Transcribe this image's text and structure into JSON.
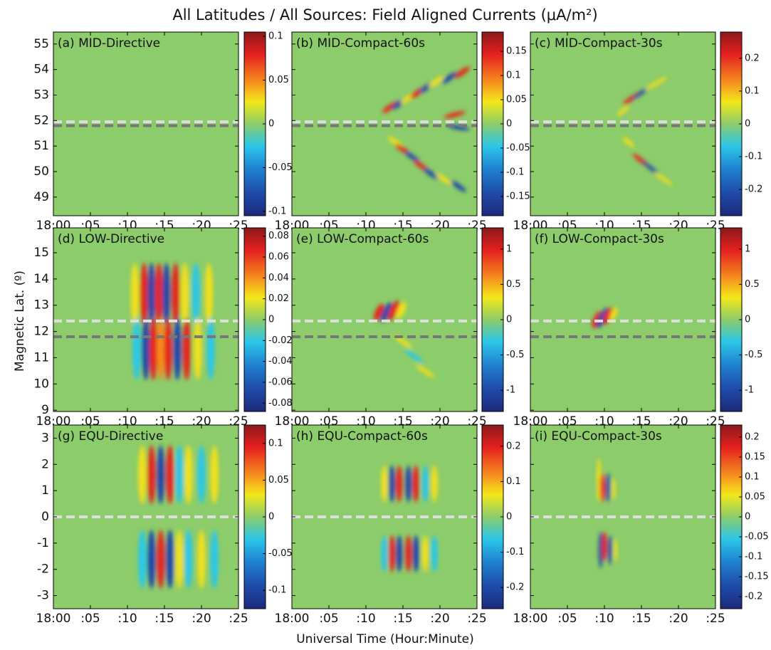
{
  "title": "All Latitudes / All Sources: Field Aligned Currents (μA/m²)",
  "x_label": "Universal Time (Hour:Minute)",
  "y_label": "Magnetic Lat. (º)",
  "chart_data": [
    {
      "type": "heatmap",
      "title": "(a) MID-Directive",
      "colormap": "jet",
      "xlim": [
        0,
        25
      ],
      "xticks": [
        {
          "value": 0,
          "label": "18:00"
        },
        {
          "value": 5,
          "label": ":05"
        },
        {
          "value": 10,
          "label": ":10"
        },
        {
          "value": 15,
          "label": ":15"
        },
        {
          "value": 20,
          "label": ":20"
        },
        {
          "value": 25,
          "label": ":25"
        }
      ],
      "ylim": [
        48.27,
        55.47
      ],
      "yticks": [
        49,
        50,
        51,
        52,
        53,
        54,
        55
      ],
      "colorbar": {
        "lim": [
          -0.105,
          0.105
        ],
        "ticks": [
          -0.1,
          -0.05,
          0,
          0.05,
          0.1
        ]
      },
      "reference_lines": [
        {
          "value": 51.95,
          "color": "#dedede"
        },
        {
          "value": 51.8,
          "color": "#777777"
        }
      ]
    },
    {
      "type": "heatmap",
      "title": "(b) MID-Compact-60s",
      "colormap": "jet",
      "xlim": [
        0,
        25
      ],
      "xticks": [
        {
          "value": 0,
          "label": "18:00"
        },
        {
          "value": 5,
          "label": ":05"
        },
        {
          "value": 10,
          "label": ":10"
        },
        {
          "value": 15,
          "label": ":15"
        },
        {
          "value": 20,
          "label": ":20"
        },
        {
          "value": 25,
          "label": ":25"
        }
      ],
      "ylim": [
        48.27,
        55.47
      ],
      "yticks": [
        49,
        50,
        51,
        52,
        53,
        54,
        55
      ],
      "colorbar": {
        "lim": [
          -0.19,
          0.19
        ],
        "ticks": [
          -0.15,
          -0.1,
          -0.05,
          0,
          0.05,
          0.1,
          0.15
        ]
      },
      "reference_lines": [
        {
          "value": 51.95,
          "color": "#dedede"
        },
        {
          "value": 51.8,
          "color": "#777777"
        }
      ]
    },
    {
      "type": "heatmap",
      "title": "(c) MID-Compact-30s",
      "colormap": "jet",
      "xlim": [
        0,
        25
      ],
      "xticks": [
        {
          "value": 0,
          "label": "18:00"
        },
        {
          "value": 5,
          "label": ":05"
        },
        {
          "value": 10,
          "label": ":10"
        },
        {
          "value": 15,
          "label": ":15"
        },
        {
          "value": 20,
          "label": ":20"
        },
        {
          "value": 25,
          "label": ":25"
        }
      ],
      "ylim": [
        48.27,
        55.47
      ],
      "yticks": [
        49,
        50,
        51,
        52,
        53,
        54,
        55
      ],
      "colorbar": {
        "lim": [
          -0.28,
          0.28
        ],
        "ticks": [
          -0.2,
          -0.1,
          0,
          0.1,
          0.2
        ]
      },
      "reference_lines": [
        {
          "value": 51.95,
          "color": "#dedede"
        },
        {
          "value": 51.8,
          "color": "#777777"
        }
      ]
    },
    {
      "type": "heatmap",
      "title": "(d) LOW-Directive",
      "colormap": "jet",
      "xlim": [
        0,
        25
      ],
      "xticks": [
        {
          "value": 0,
          "label": "18:00"
        },
        {
          "value": 5,
          "label": ":05"
        },
        {
          "value": 10,
          "label": ":10"
        },
        {
          "value": 15,
          "label": ":15"
        },
        {
          "value": 20,
          "label": ":20"
        },
        {
          "value": 25,
          "label": ":25"
        }
      ],
      "ylim": [
        8.95,
        15.95
      ],
      "yticks": [
        9,
        10,
        11,
        12,
        13,
        14,
        15
      ],
      "colorbar": {
        "lim": [
          -0.088,
          0.088
        ],
        "ticks": [
          -0.08,
          -0.06,
          -0.04,
          -0.02,
          0,
          0.02,
          0.04,
          0.06,
          0.08
        ]
      },
      "reference_lines": [
        {
          "value": 12.4,
          "color": "#dedede"
        },
        {
          "value": 11.8,
          "color": "#777777"
        }
      ]
    },
    {
      "type": "heatmap",
      "title": "(e) LOW-Compact-60s",
      "colormap": "jet",
      "xlim": [
        0,
        25
      ],
      "xticks": [
        {
          "value": 0,
          "label": "18:00"
        },
        {
          "value": 5,
          "label": ":05"
        },
        {
          "value": 10,
          "label": ":10"
        },
        {
          "value": 15,
          "label": ":15"
        },
        {
          "value": 20,
          "label": ":20"
        },
        {
          "value": 25,
          "label": ":25"
        }
      ],
      "ylim": [
        8.95,
        15.95
      ],
      "yticks": [
        9,
        10,
        11,
        12,
        13,
        14,
        15
      ],
      "colorbar": {
        "lim": [
          -1.3,
          1.3
        ],
        "ticks": [
          -1,
          -0.5,
          0,
          0.5,
          1
        ]
      },
      "reference_lines": [
        {
          "value": 12.4,
          "color": "#dedede"
        },
        {
          "value": 11.8,
          "color": "#777777"
        }
      ]
    },
    {
      "type": "heatmap",
      "title": "(f) LOW-Compact-30s",
      "colormap": "jet",
      "xlim": [
        0,
        25
      ],
      "xticks": [
        {
          "value": 0,
          "label": "18:00"
        },
        {
          "value": 5,
          "label": ":05"
        },
        {
          "value": 10,
          "label": ":10"
        },
        {
          "value": 15,
          "label": ":15"
        },
        {
          "value": 20,
          "label": ":20"
        },
        {
          "value": 25,
          "label": ":25"
        }
      ],
      "ylim": [
        8.95,
        15.95
      ],
      "yticks": [
        9,
        10,
        11,
        12,
        13,
        14,
        15
      ],
      "colorbar": {
        "lim": [
          -1.3,
          1.3
        ],
        "ticks": [
          -1,
          -0.5,
          0,
          0.5,
          1
        ]
      },
      "reference_lines": [
        {
          "value": 12.4,
          "color": "#dedede"
        },
        {
          "value": 11.8,
          "color": "#777777"
        }
      ]
    },
    {
      "type": "heatmap",
      "title": "(g) EQU-Directive",
      "colormap": "jet",
      "xlim": [
        0,
        25
      ],
      "xticks": [
        {
          "value": 0,
          "label": "18:00"
        },
        {
          "value": 5,
          "label": ":05"
        },
        {
          "value": 10,
          "label": ":10"
        },
        {
          "value": 15,
          "label": ":15"
        },
        {
          "value": 20,
          "label": ":20"
        },
        {
          "value": 25,
          "label": ":25"
        }
      ],
      "ylim": [
        -3.5,
        3.5
      ],
      "yticks": [
        -3,
        -2,
        -1,
        0,
        1,
        2,
        3
      ],
      "colorbar": {
        "lim": [
          -0.125,
          0.125
        ],
        "ticks": [
          -0.1,
          -0.05,
          0,
          0.05,
          0.1
        ]
      },
      "reference_lines": [
        {
          "value": 0,
          "color": "#dedede"
        }
      ]
    },
    {
      "type": "heatmap",
      "title": "(h) EQU-Compact-60s",
      "colormap": "jet",
      "xlim": [
        0,
        25
      ],
      "xticks": [
        {
          "value": 0,
          "label": "18:00"
        },
        {
          "value": 5,
          "label": ":05"
        },
        {
          "value": 10,
          "label": ":10"
        },
        {
          "value": 15,
          "label": ":15"
        },
        {
          "value": 20,
          "label": ":20"
        },
        {
          "value": 25,
          "label": ":25"
        }
      ],
      "ylim": [
        -3.5,
        3.5
      ],
      "yticks": [
        -3,
        -2,
        -1,
        0,
        1,
        2,
        3
      ],
      "colorbar": {
        "lim": [
          -0.26,
          0.26
        ],
        "ticks": [
          -0.2,
          -0.1,
          0,
          0.1,
          0.2
        ]
      },
      "reference_lines": [
        {
          "value": 0,
          "color": "#dedede"
        }
      ]
    },
    {
      "type": "heatmap",
      "title": "(i) EQU-Compact-30s",
      "colormap": "jet",
      "xlim": [
        0,
        25
      ],
      "xticks": [
        {
          "value": 0,
          "label": "18:00"
        },
        {
          "value": 5,
          "label": ":05"
        },
        {
          "value": 10,
          "label": ":10"
        },
        {
          "value": 15,
          "label": ":15"
        },
        {
          "value": 20,
          "label": ":20"
        },
        {
          "value": 25,
          "label": ":25"
        }
      ],
      "ylim": [
        -3.5,
        3.5
      ],
      "yticks": [
        -3,
        -2,
        -1,
        0,
        1,
        2,
        3
      ],
      "colorbar": {
        "lim": [
          -0.23,
          0.23
        ],
        "ticks": [
          -0.2,
          -0.15,
          -0.1,
          -0.05,
          0,
          0.05,
          0.1,
          0.15,
          0.2
        ]
      },
      "reference_lines": [
        {
          "value": 0,
          "color": "#dedede"
        }
      ]
    }
  ]
}
